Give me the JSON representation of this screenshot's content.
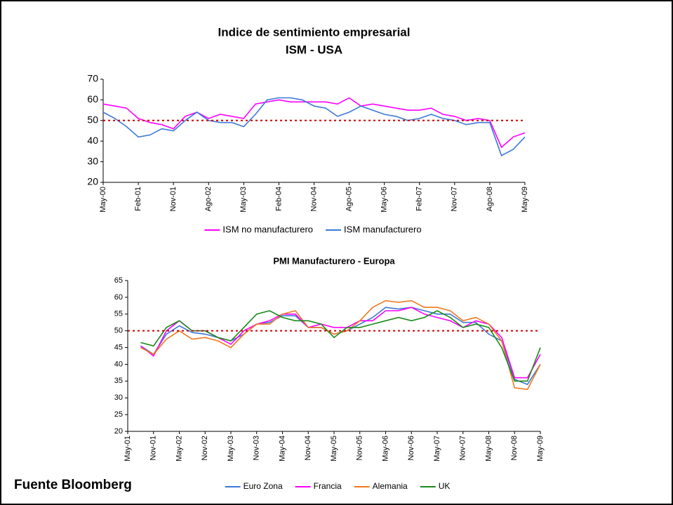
{
  "chart_data": [
    {
      "type": "line",
      "title": "Indice de sentimiento empresarial",
      "subtitle": "ISM - USA",
      "categories": [
        "May-00",
        null,
        null,
        "Feb-01",
        null,
        null,
        "Nov-01",
        null,
        null,
        "Ago-02",
        null,
        null,
        "May-03",
        null,
        null,
        "Feb-04",
        null,
        null,
        "Nov-04",
        null,
        null,
        "Ago-05",
        null,
        null,
        "May-06",
        null,
        null,
        "Feb-07",
        null,
        null,
        "Nov-07",
        null,
        null,
        "Ago-08",
        null,
        null,
        "May-09"
      ],
      "series": [
        {
          "name": "ISM no manufacturero",
          "color": "#ff00ff",
          "values": [
            58,
            57,
            56,
            51,
            49,
            48,
            46,
            52,
            54,
            51,
            53,
            52,
            51,
            58,
            59,
            60,
            59,
            59,
            59,
            59,
            58,
            61,
            57,
            58,
            57,
            56,
            55,
            55,
            56,
            53,
            52,
            50,
            51,
            50,
            37,
            42,
            44
          ]
        },
        {
          "name": "ISM manufacturero",
          "color": "#3c78d8",
          "values": [
            54,
            51,
            47,
            42,
            43,
            46,
            45,
            50,
            54,
            50,
            49,
            49,
            47,
            53,
            60,
            61,
            61,
            60,
            57,
            56,
            52,
            54,
            57,
            55,
            53,
            52,
            50,
            51,
            53,
            51,
            50,
            48,
            49,
            49,
            33,
            36,
            42
          ]
        }
      ],
      "ylim": [
        20,
        70
      ],
      "yticks": [
        20,
        30,
        40,
        50,
        60,
        70
      ],
      "reference": 50,
      "reference_color": "#cc0000"
    },
    {
      "type": "line",
      "title": "PMI Manufacturero - Europa",
      "categories": [
        "May-01",
        null,
        "Nov-01",
        null,
        "May-02",
        null,
        "Nov-02",
        null,
        "May-03",
        null,
        "Nov-03",
        null,
        "May-04",
        null,
        "Nov-04",
        null,
        "May-05",
        null,
        "Nov-05",
        null,
        "May-06",
        null,
        "Nov-06",
        null,
        "May-07",
        null,
        "Nov-07",
        null,
        "May-08",
        null,
        "Nov-08",
        null,
        "May-09"
      ],
      "series": [
        {
          "name": "Euro Zona",
          "color": "#3c78d8",
          "values": [
            null,
            45.5,
            43,
            49,
            51.5,
            49.5,
            49,
            48,
            47,
            49,
            52,
            52.5,
            54.5,
            54.5,
            51,
            51,
            49,
            50,
            52,
            54,
            57,
            56.5,
            57,
            56,
            55,
            55,
            52.5,
            52.5,
            49,
            47,
            35.5,
            34,
            40
          ]
        },
        {
          "name": "Francia",
          "color": "#ff00ff",
          "values": [
            null,
            45.5,
            42.5,
            50,
            53,
            50,
            50,
            48,
            46,
            50,
            52,
            53,
            55,
            55,
            51,
            52,
            51,
            51,
            53,
            53,
            56,
            56,
            57,
            55,
            54,
            53,
            51,
            53,
            52,
            48,
            36,
            36,
            43
          ]
        },
        {
          "name": "Alemania",
          "color": "#f07820",
          "values": [
            null,
            45,
            43,
            47.5,
            50,
            47.5,
            48,
            47,
            45,
            49,
            52,
            52,
            55,
            56,
            51,
            51,
            49,
            50,
            53,
            57,
            59,
            58.5,
            59,
            57,
            57,
            56,
            53,
            54,
            52,
            47,
            33,
            32.5,
            40
          ]
        },
        {
          "name": "UK",
          "color": "#1a8a1a",
          "values": [
            null,
            46.5,
            45.5,
            51,
            53,
            50,
            50,
            48,
            47,
            51,
            55,
            56,
            54,
            53,
            53,
            52,
            48,
            51,
            51,
            52,
            53,
            54,
            53,
            54,
            56,
            54,
            51,
            52,
            51,
            45,
            35,
            35,
            45
          ]
        }
      ],
      "ylim": [
        20,
        65
      ],
      "yticks": [
        20,
        25,
        30,
        35,
        40,
        45,
        50,
        55,
        60,
        65
      ],
      "reference": 50,
      "reference_color": "#cc0000"
    }
  ],
  "source": "Fuente Bloomberg"
}
